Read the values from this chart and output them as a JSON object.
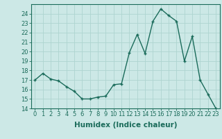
{
  "x": [
    0,
    1,
    2,
    3,
    4,
    5,
    6,
    7,
    8,
    9,
    10,
    11,
    12,
    13,
    14,
    15,
    16,
    17,
    18,
    19,
    20,
    21,
    22,
    23
  ],
  "y": [
    17.0,
    17.7,
    17.1,
    16.9,
    16.3,
    15.8,
    15.0,
    15.0,
    15.2,
    15.3,
    16.5,
    16.6,
    19.9,
    21.8,
    19.8,
    23.2,
    24.5,
    23.8,
    23.2,
    19.0,
    21.6,
    17.0,
    15.5,
    14.0
  ],
  "xlabel": "Humidex (Indice chaleur)",
  "ylim": [
    14,
    25
  ],
  "xlim": [
    -0.5,
    23.5
  ],
  "yticks": [
    14,
    15,
    16,
    17,
    18,
    19,
    20,
    21,
    22,
    23,
    24
  ],
  "xticks": [
    0,
    1,
    2,
    3,
    4,
    5,
    6,
    7,
    8,
    9,
    10,
    11,
    12,
    13,
    14,
    15,
    16,
    17,
    18,
    19,
    20,
    21,
    22,
    23
  ],
  "line_color": "#1a6b5a",
  "marker": "+",
  "bg_color": "#cce8e6",
  "grid_color": "#aed4d0",
  "tick_label_fontsize": 6.0,
  "xlabel_fontsize": 7.5
}
